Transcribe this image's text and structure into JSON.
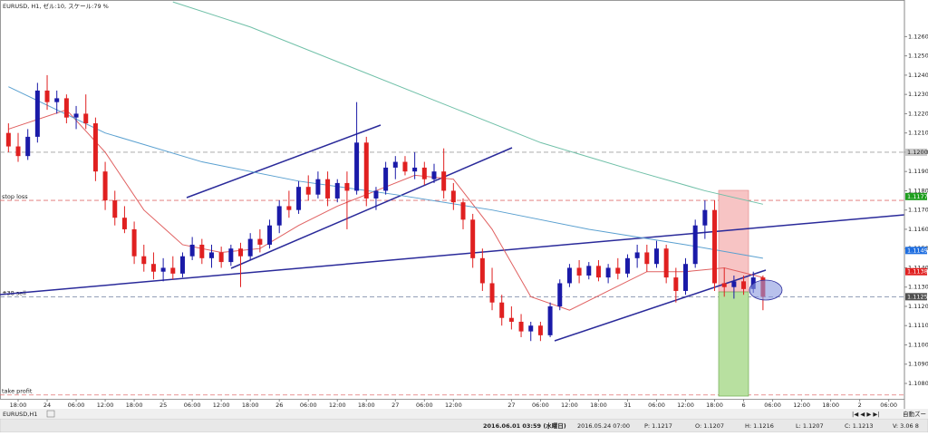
{
  "chart_data": {
    "type": "candlestick",
    "title": "EURUSD, H1, ゼル:10, スケール:79 %",
    "categories": [
      null,
      "18:00",
      null,
      null,
      "24",
      null,
      null,
      "06:00",
      null,
      null,
      "12:00",
      null,
      null,
      "18:00",
      null,
      null,
      "25",
      null,
      null,
      "06:00",
      null,
      null,
      "12:00",
      null,
      null,
      "18:00",
      null,
      null,
      "26",
      null,
      null,
      "06:00",
      null,
      null,
      "12:00",
      null,
      null,
      "18:00",
      null,
      null,
      "27",
      null,
      null,
      "06:00",
      null,
      null,
      "12:00",
      null,
      null,
      null,
      null,
      null,
      "27",
      null,
      null,
      "06:00",
      null,
      null,
      "12:00",
      null,
      null,
      "18:00",
      null,
      null,
      "31",
      null,
      null,
      "06:00",
      null,
      null,
      "12:00",
      null,
      null,
      "18:00",
      null,
      null,
      "6",
      null,
      null,
      "06:00",
      null,
      null,
      "12:00",
      null,
      null,
      "18:00",
      null,
      null,
      "2",
      null,
      null,
      "06:00"
    ],
    "candles": [
      [
        1.121,
        1.1215,
        1.12,
        1.1203
      ],
      [
        1.1203,
        1.121,
        1.1195,
        1.1198
      ],
      [
        1.1198,
        1.1212,
        1.1196,
        1.1208
      ],
      [
        1.1208,
        1.1236,
        1.1205,
        1.1232
      ],
      [
        1.1232,
        1.124,
        1.1222,
        1.1226
      ],
      [
        1.1226,
        1.1232,
        1.122,
        1.1228
      ],
      [
        1.1228,
        1.123,
        1.1215,
        1.1218
      ],
      [
        1.1218,
        1.1224,
        1.1212,
        1.122
      ],
      [
        1.122,
        1.123,
        1.1212,
        1.1215
      ],
      [
        1.1215,
        1.1218,
        1.1185,
        1.119
      ],
      [
        1.119,
        1.1195,
        1.117,
        1.1175
      ],
      [
        1.1175,
        1.118,
        1.1162,
        1.1166
      ],
      [
        1.1166,
        1.1172,
        1.1158,
        1.116
      ],
      [
        1.116,
        1.1164,
        1.1142,
        1.1146
      ],
      [
        1.1146,
        1.1152,
        1.1138,
        1.1142
      ],
      [
        1.1142,
        1.1148,
        1.1134,
        1.1138
      ],
      [
        1.1138,
        1.1145,
        1.1133,
        1.114
      ],
      [
        1.114,
        1.1146,
        1.1134,
        1.1137
      ],
      [
        1.1137,
        1.1148,
        1.1135,
        1.1146
      ],
      [
        1.1146,
        1.1156,
        1.1144,
        1.1152
      ],
      [
        1.1152,
        1.1155,
        1.1142,
        1.1145
      ],
      [
        1.1145,
        1.1152,
        1.114,
        1.1148
      ],
      [
        1.1148,
        1.1151,
        1.114,
        1.1143
      ],
      [
        1.1143,
        1.1152,
        1.1141,
        1.115
      ],
      [
        1.115,
        1.1153,
        1.113,
        1.1146
      ],
      [
        1.1146,
        1.1158,
        1.1144,
        1.1155
      ],
      [
        1.1155,
        1.116,
        1.1148,
        1.1152
      ],
      [
        1.1152,
        1.1165,
        1.115,
        1.1162
      ],
      [
        1.1162,
        1.1175,
        1.1158,
        1.1172
      ],
      [
        1.1172,
        1.118,
        1.1166,
        1.117
      ],
      [
        1.117,
        1.1185,
        1.1168,
        1.1182
      ],
      [
        1.1182,
        1.1188,
        1.1175,
        1.1178
      ],
      [
        1.1178,
        1.119,
        1.1176,
        1.1186
      ],
      [
        1.1186,
        1.119,
        1.1172,
        1.1176
      ],
      [
        1.1176,
        1.1186,
        1.1174,
        1.1184
      ],
      [
        1.1184,
        1.119,
        1.116,
        1.118
      ],
      [
        1.118,
        1.1226,
        1.1178,
        1.1205
      ],
      [
        1.1205,
        1.1208,
        1.1172,
        1.1176
      ],
      [
        1.1176,
        1.1182,
        1.117,
        1.118
      ],
      [
        1.118,
        1.1195,
        1.1178,
        1.1192
      ],
      [
        1.1192,
        1.1198,
        1.1186,
        1.1195
      ],
      [
        1.1195,
        1.1198,
        1.1188,
        1.119
      ],
      [
        1.119,
        1.12,
        1.1186,
        1.1192
      ],
      [
        1.1192,
        1.1195,
        1.1183,
        1.1186
      ],
      [
        1.1186,
        1.1194,
        1.1184,
        1.119
      ],
      [
        1.119,
        1.1202,
        1.1176,
        1.118
      ],
      [
        1.118,
        1.1184,
        1.117,
        1.1174
      ],
      [
        1.1174,
        1.1176,
        1.116,
        1.1165
      ],
      [
        1.1165,
        1.1168,
        1.114,
        1.1145
      ],
      [
        1.1145,
        1.115,
        1.1128,
        1.1132
      ],
      [
        1.1132,
        1.114,
        1.1118,
        1.1122
      ],
      [
        1.1122,
        1.1126,
        1.111,
        1.1114
      ],
      [
        1.1114,
        1.112,
        1.1108,
        1.1112
      ],
      [
        1.1112,
        1.1116,
        1.1104,
        1.1107
      ],
      [
        1.1107,
        1.1112,
        1.1102,
        1.111
      ],
      [
        1.111,
        1.1112,
        1.1102,
        1.1105
      ],
      [
        1.1105,
        1.1122,
        1.1104,
        1.112
      ],
      [
        1.112,
        1.1134,
        1.1118,
        1.1132
      ],
      [
        1.1132,
        1.1142,
        1.113,
        1.114
      ],
      [
        1.114,
        1.1144,
        1.1132,
        1.1136
      ],
      [
        1.1136,
        1.1143,
        1.1134,
        1.1141
      ],
      [
        1.1141,
        1.1144,
        1.1133,
        1.1135
      ],
      [
        1.1135,
        1.1142,
        1.1132,
        1.114
      ],
      [
        1.114,
        1.1145,
        1.1134,
        1.1137
      ],
      [
        1.1137,
        1.1147,
        1.1135,
        1.1145
      ],
      [
        1.1145,
        1.1152,
        1.114,
        1.1148
      ],
      [
        1.1148,
        1.1152,
        1.1138,
        1.1142
      ],
      [
        1.1142,
        1.1154,
        1.114,
        1.115
      ],
      [
        1.115,
        1.1152,
        1.1132,
        1.1135
      ],
      [
        1.1135,
        1.114,
        1.1122,
        1.1128
      ],
      [
        1.1128,
        1.1145,
        1.1126,
        1.1142
      ],
      [
        1.1142,
        1.1165,
        1.114,
        1.1162
      ],
      [
        1.1162,
        1.1175,
        1.1155,
        1.117
      ],
      [
        1.117,
        1.1175,
        1.1128,
        1.1132
      ],
      [
        1.1132,
        1.114,
        1.1125,
        1.113
      ],
      [
        1.113,
        1.1136,
        1.1124,
        1.1133
      ],
      [
        1.1133,
        1.1136,
        1.1126,
        1.1129
      ],
      [
        1.1129,
        1.1138,
        1.1127,
        1.1135
      ],
      [
        1.1135,
        1.1136,
        1.1118,
        1.1125
      ],
      null,
      null,
      null,
      null,
      null,
      null,
      null,
      null,
      null,
      null,
      null,
      null,
      null
    ],
    "up_color": "#1a1aa8",
    "down_color": "#e02020",
    "lines": [
      {
        "color": "#e06060",
        "x": [
          0,
          6,
          10,
          14,
          18,
          22,
          26,
          30,
          34,
          38,
          42,
          46,
          50,
          54,
          58,
          62,
          66,
          70,
          74,
          78
        ],
        "values": [
          1.1212,
          1.1222,
          1.12,
          1.117,
          1.1152,
          1.1148,
          1.115,
          1.1162,
          1.1172,
          1.118,
          1.1188,
          1.1186,
          1.116,
          1.1125,
          1.1118,
          1.1128,
          1.1138,
          1.1138,
          1.114,
          1.1135
        ]
      },
      {
        "color": "#5aa0d0",
        "x": [
          0,
          10,
          20,
          30,
          40,
          50,
          60,
          70,
          78
        ],
        "values": [
          1.1234,
          1.121,
          1.1195,
          1.1185,
          1.1178,
          1.117,
          1.116,
          1.1152,
          1.1145
        ]
      },
      {
        "color": "#70c0a8",
        "x": [
          17,
          25,
          35,
          45,
          55,
          65,
          72,
          78
        ],
        "values": [
          1.1278,
          1.1265,
          1.1245,
          1.1225,
          1.1205,
          1.119,
          1.118,
          1.1173
        ]
      }
    ],
    "levels": [
      {
        "value": 1.12,
        "color": "#a0a0a0"
      },
      {
        "label": "stop loss",
        "value": 1.1175,
        "color": "#e07070"
      },
      {
        "label": "#38 sell",
        "value": 1.1125,
        "color": "#7080a0"
      },
      {
        "label": "take profit",
        "value": 1.1074,
        "color": "#e07070"
      }
    ],
    "price_markers": [
      {
        "value": 1.12,
        "label": "1.1200",
        "color": "#c8c8c8"
      },
      {
        "value": 1.1177,
        "label": "1.1177",
        "color": "#1e9e1e"
      },
      {
        "value": 1.1149,
        "label": "1.1149",
        "color": "#1e6ee0"
      },
      {
        "value": 1.1138,
        "label": "1.1138",
        "color": "#e02020"
      },
      {
        "value": 1.1125,
        "label": "1.1125",
        "color": "#505050"
      }
    ],
    "ylim": [
      1.1072,
      1.1279
    ],
    "yticks": [
      {
        "value": 1.108,
        "label": "1.1080"
      },
      {
        "value": 1.109,
        "label": "1.1090"
      },
      {
        "value": 1.11,
        "label": "1.1100"
      },
      {
        "value": 1.111,
        "label": "1.1110"
      },
      {
        "value": 1.112,
        "label": "1.1120"
      },
      {
        "value": 1.113,
        "label": "1.1130"
      },
      {
        "value": 1.114,
        "label": "1.1140"
      },
      {
        "value": 1.115,
        "label": "1.1150"
      },
      {
        "value": 1.116,
        "label": "1.1160"
      },
      {
        "value": 1.117,
        "label": "1.1170"
      },
      {
        "value": 1.118,
        "label": "1.1180"
      },
      {
        "value": 1.119,
        "label": "1.1190"
      },
      {
        "value": 1.12,
        "label": "1.1200"
      },
      {
        "value": 1.121,
        "label": "1.1210"
      },
      {
        "value": 1.122,
        "label": "1.1220"
      },
      {
        "value": 1.123,
        "label": "1.1230"
      },
      {
        "value": 1.124,
        "label": "1.1240"
      },
      {
        "value": 1.125,
        "label": "1.1250"
      },
      {
        "value": 1.126,
        "label": "1.1260"
      }
    ],
    "grid": false
  },
  "tab": "EURUSD,H1",
  "toolbar": "自動ズー",
  "status_bar": {
    "time": "2016.06.01 03:59 (水曜日)",
    "bar_time": "2016.05.24 07:00",
    "p": "P: 1.1217",
    "o": "O: 1.1207",
    "h": "H: 1.1216",
    "l": "L: 1.1207",
    "c": "C: 1.1213",
    "v": "V: 3.06 8"
  }
}
